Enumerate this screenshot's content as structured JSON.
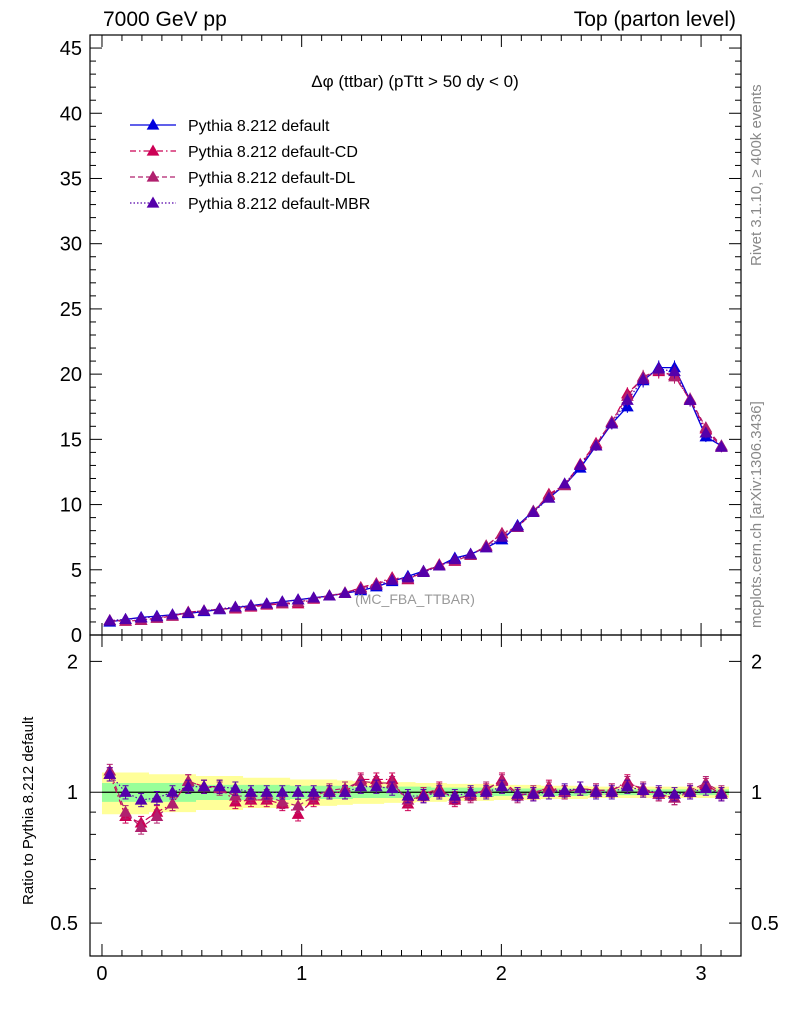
{
  "header": {
    "left": "7000 GeV pp",
    "right": "Top (parton level)"
  },
  "side_labels": {
    "rivet": "Rivet 3.1.10, ≥ 400k events",
    "mcplots": "mcplots.cern.ch [arXiv:1306.3436]"
  },
  "watermark": "(MC_FBA_TTBAR)",
  "chart_data": [
    {
      "type": "line",
      "title": "Δφ (ttbar) (pTtt > 50 dy < 0)",
      "ylim": [
        0,
        46
      ],
      "xlim": [
        -0.06,
        3.2
      ],
      "yticks": [
        0,
        5,
        10,
        15,
        20,
        25,
        30,
        35,
        40,
        45
      ],
      "xticks": [
        0,
        1,
        2,
        3
      ],
      "grid": false,
      "legend_position": "top-left",
      "x": [
        0.039,
        0.118,
        0.196,
        0.275,
        0.353,
        0.432,
        0.511,
        0.589,
        0.668,
        0.746,
        0.825,
        0.903,
        0.982,
        1.06,
        1.139,
        1.217,
        1.296,
        1.374,
        1.453,
        1.532,
        1.61,
        1.689,
        1.767,
        1.846,
        1.924,
        2.003,
        2.081,
        2.16,
        2.238,
        2.317,
        2.395,
        2.474,
        2.553,
        2.631,
        2.71,
        2.788,
        2.867,
        2.945,
        3.024,
        3.102
      ],
      "series": [
        {
          "name": "Pythia 8.212 default",
          "color": "#0000dd",
          "line": "solid",
          "values": [
            1.0,
            1.2,
            1.35,
            1.45,
            1.55,
            1.65,
            1.8,
            1.95,
            2.1,
            2.25,
            2.4,
            2.55,
            2.7,
            2.85,
            3.0,
            3.2,
            3.4,
            3.7,
            4.1,
            4.5,
            4.9,
            5.3,
            5.9,
            6.2,
            6.7,
            7.3,
            8.4,
            9.5,
            10.5,
            11.5,
            12.8,
            14.5,
            16.2,
            17.5,
            19.5,
            20.5,
            20.5,
            18.0,
            15.2,
            14.5
          ]
        },
        {
          "name": "Pythia 8.212 default-CD",
          "color": "#cc0055",
          "line": "dashdot",
          "values": [
            1.1,
            1.05,
            1.15,
            1.3,
            1.45,
            1.75,
            1.85,
            2.0,
            2.0,
            2.15,
            2.3,
            2.4,
            2.4,
            2.75,
            3.0,
            3.2,
            3.65,
            3.95,
            4.4,
            4.25,
            4.85,
            5.4,
            5.65,
            6.15,
            6.8,
            7.8,
            8.3,
            9.4,
            10.8,
            11.5,
            13.1,
            14.7,
            16.3,
            18.5,
            19.7,
            20.2,
            19.9,
            18.0,
            15.8,
            14.4
          ]
        },
        {
          "name": "Pythia 8.212 default-DL",
          "color": "#b0206e",
          "line": "dashed",
          "values": [
            1.12,
            1.08,
            1.12,
            1.28,
            1.45,
            1.75,
            1.86,
            1.98,
            2.05,
            2.2,
            2.35,
            2.42,
            2.5,
            2.8,
            3.02,
            3.25,
            3.6,
            3.9,
            4.3,
            4.3,
            4.8,
            5.35,
            5.7,
            6.1,
            6.85,
            7.75,
            8.25,
            9.5,
            10.7,
            11.45,
            13.0,
            14.6,
            16.35,
            18.3,
            19.8,
            20.3,
            19.8,
            18.1,
            15.9,
            14.5
          ]
        },
        {
          "name": "Pythia 8.212 default-MBR",
          "color": "#5500aa",
          "line": "dotted",
          "values": [
            1.1,
            1.2,
            1.3,
            1.4,
            1.55,
            1.7,
            1.85,
            2.0,
            2.15,
            2.25,
            2.4,
            2.55,
            2.7,
            2.85,
            3.0,
            3.2,
            3.5,
            3.8,
            4.2,
            4.4,
            4.8,
            5.3,
            5.8,
            6.2,
            6.7,
            7.5,
            8.3,
            9.4,
            10.5,
            11.6,
            13.0,
            14.5,
            16.2,
            18.0,
            19.6,
            20.4,
            20.2,
            18.0,
            15.5,
            14.4
          ]
        }
      ]
    },
    {
      "type": "line",
      "ylabel": "Ratio to Pythia 8.212 default",
      "ylim": [
        0.42,
        2.3
      ],
      "log_y": true,
      "yticks": [
        0.5,
        1,
        2
      ],
      "xlim": [
        -0.06,
        3.2
      ],
      "xticks": [
        0,
        1,
        2,
        3
      ],
      "grid": false,
      "bands": {
        "green_half_width": [
          0.05,
          0.05,
          0.05,
          0.05,
          0.05,
          0.05,
          0.04,
          0.04,
          0.04,
          0.04,
          0.04,
          0.04,
          0.035,
          0.035,
          0.035,
          0.035,
          0.03,
          0.03,
          0.03,
          0.03,
          0.03,
          0.025,
          0.025,
          0.025,
          0.025,
          0.02,
          0.02,
          0.02,
          0.02,
          0.02,
          0.02,
          0.015,
          0.015,
          0.015,
          0.015,
          0.015,
          0.015,
          0.015,
          0.015,
          0.015
        ],
        "yellow_half_width": [
          0.11,
          0.11,
          0.11,
          0.1,
          0.1,
          0.1,
          0.09,
          0.09,
          0.09,
          0.08,
          0.08,
          0.08,
          0.07,
          0.07,
          0.07,
          0.065,
          0.06,
          0.06,
          0.055,
          0.055,
          0.05,
          0.05,
          0.045,
          0.045,
          0.045,
          0.04,
          0.04,
          0.04,
          0.035,
          0.035,
          0.035,
          0.03,
          0.03,
          0.03,
          0.03,
          0.03,
          0.03,
          0.03,
          0.03,
          0.03
        ]
      },
      "series": [
        {
          "name": "Pythia 8.212 default-CD",
          "color": "#cc0055",
          "values": [
            1.1,
            0.88,
            0.85,
            0.9,
            0.94,
            1.06,
            1.03,
            1.03,
            0.95,
            0.96,
            0.96,
            0.94,
            0.89,
            0.96,
            1.0,
            1.0,
            1.07,
            1.07,
            1.07,
            0.94,
            0.99,
            1.02,
            0.96,
            0.99,
            1.01,
            1.07,
            0.99,
            0.99,
            1.03,
            1.0,
            1.02,
            1.01,
            1.01,
            1.06,
            1.01,
            0.99,
            0.97,
            1.0,
            1.04,
            0.99
          ]
        },
        {
          "name": "Pythia 8.212 default-DL",
          "color": "#b0206e",
          "values": [
            1.12,
            0.9,
            0.83,
            0.88,
            0.94,
            1.06,
            1.03,
            1.02,
            0.98,
            0.98,
            0.98,
            0.95,
            0.93,
            0.98,
            1.01,
            1.02,
            1.06,
            1.05,
            1.05,
            0.96,
            0.98,
            1.01,
            0.97,
            0.98,
            1.02,
            1.06,
            0.98,
            1.0,
            1.02,
            1.0,
            1.02,
            1.01,
            1.01,
            1.05,
            1.02,
            0.99,
            0.97,
            1.01,
            1.05,
            1.0
          ]
        },
        {
          "name": "Pythia 8.212 default-MBR",
          "color": "#5500aa",
          "values": [
            1.1,
            1.0,
            0.96,
            0.97,
            1.0,
            1.03,
            1.03,
            1.03,
            1.02,
            1.0,
            1.0,
            1.0,
            1.0,
            1.0,
            1.0,
            1.0,
            1.03,
            1.03,
            1.02,
            0.98,
            0.98,
            1.0,
            0.98,
            1.0,
            1.0,
            1.03,
            0.99,
            0.99,
            1.0,
            1.01,
            1.02,
            1.0,
            1.0,
            1.03,
            1.01,
            1.0,
            0.99,
            1.0,
            1.02,
            0.99
          ]
        }
      ]
    }
  ]
}
